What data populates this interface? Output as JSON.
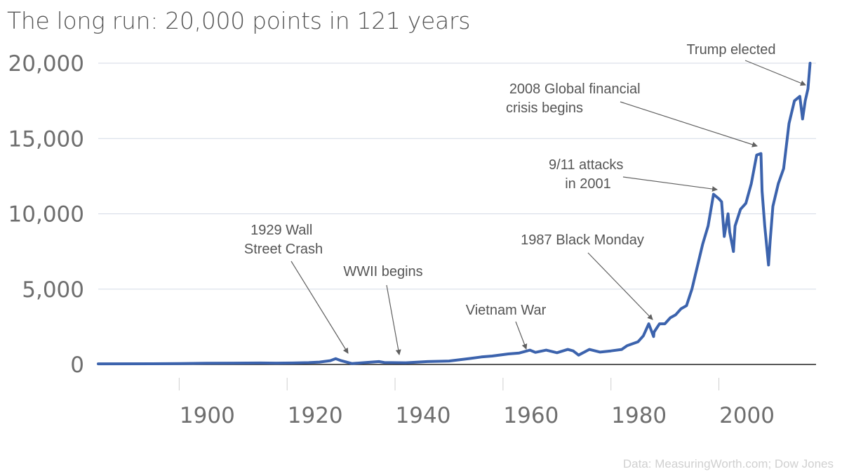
{
  "chart_data": {
    "type": "line",
    "title": "The long run: 20,000 points in 121 years",
    "xlabel": "",
    "ylabel": "",
    "xlim": [
      1885,
      2018
    ],
    "ylim": [
      0,
      20000
    ],
    "yticks": [
      0,
      5000,
      10000,
      15000,
      20000
    ],
    "ytick_labels": [
      "0",
      "5,000",
      "10,000",
      "15,000",
      "20,000"
    ],
    "xticks": [
      1900,
      1920,
      1940,
      1960,
      1980,
      2000
    ],
    "xtick_labels": [
      "1900",
      "1920",
      "1940",
      "1960",
      "1980",
      "2000"
    ],
    "grid": true,
    "series": [
      {
        "name": "",
        "color": "#3c63ad",
        "x": [
          1885,
          1895,
          1900,
          1905,
          1910,
          1915,
          1918,
          1921,
          1924,
          1926,
          1928,
          1929,
          1930,
          1932,
          1935,
          1937,
          1938,
          1942,
          1946,
          1950,
          1954,
          1956,
          1958,
          1961,
          1963,
          1965,
          1966,
          1968,
          1970,
          1972,
          1973,
          1974,
          1976,
          1978,
          1980,
          1982,
          1983,
          1985,
          1986,
          1987,
          1987.9,
          1988,
          1989,
          1990,
          1991,
          1992,
          1993,
          1994,
          1995,
          1996,
          1997,
          1998,
          1999,
          2000,
          2000.5,
          2001,
          2001.7,
          2002,
          2002.7,
          2003,
          2004,
          2005,
          2006,
          2007,
          2007.8,
          2008,
          2008.5,
          2009.2,
          2009.5,
          2010,
          2011,
          2012,
          2013,
          2014,
          2015,
          2015.5,
          2016,
          2016.5,
          2016.9
        ],
        "values": [
          40,
          45,
          60,
          80,
          90,
          100,
          90,
          100,
          120,
          160,
          250,
          380,
          250,
          60,
          140,
          190,
          130,
          110,
          190,
          230,
          400,
          500,
          560,
          700,
          760,
          950,
          800,
          950,
          780,
          1000,
          900,
          620,
          1000,
          820,
          900,
          1000,
          1250,
          1500,
          1900,
          2700,
          1850,
          2150,
          2700,
          2700,
          3100,
          3300,
          3700,
          3900,
          5000,
          6500,
          8000,
          9200,
          11300,
          11000,
          10800,
          8500,
          10000,
          8800,
          7500,
          9200,
          10300,
          10700,
          12000,
          13900,
          14000,
          11500,
          9200,
          6600,
          8200,
          10500,
          12000,
          13000,
          16000,
          17500,
          17800,
          16300,
          17500,
          18300,
          20000
        ]
      }
    ],
    "annotations": [
      {
        "lines": [
          "Trump elected"
        ]
      },
      {
        "lines": [
          "2008 Global financial",
          "crisis begins"
        ]
      },
      {
        "lines": [
          "9/11 attacks",
          "in 2001"
        ]
      },
      {
        "lines": [
          "1987 Black Monday"
        ]
      },
      {
        "lines": [
          "Vietnam War"
        ]
      },
      {
        "lines": [
          "WWII begins"
        ]
      },
      {
        "lines": [
          "1929 Wall",
          "Street Crash"
        ]
      }
    ],
    "source": "Data: MeasuringWorth.com; Dow Jones"
  }
}
